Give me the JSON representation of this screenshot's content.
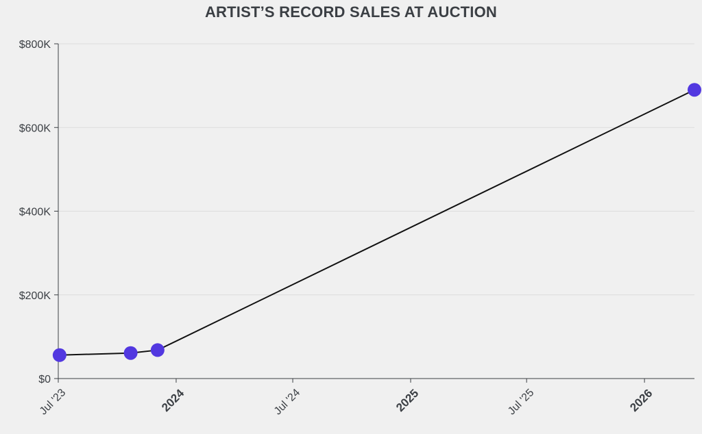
{
  "chart_data": {
    "type": "line",
    "title": "ARTIST’S RECORD SALES AT AUCTION",
    "xlabel": "",
    "ylabel": "",
    "x": [
      "2023-07-03",
      "2023-10-22",
      "2023-12-03",
      "2026-03-20"
    ],
    "series": [
      {
        "values": [
          56000,
          61000,
          68000,
          690000
        ]
      }
    ],
    "ylim": [
      0,
      800000
    ],
    "xlim": [
      "2023-07-01",
      "2026-03-20"
    ],
    "yticks": [
      {
        "value": 0,
        "label": "$0"
      },
      {
        "value": 200000,
        "label": "$200K"
      },
      {
        "value": 400000,
        "label": "$400K"
      },
      {
        "value": 600000,
        "label": "$600K"
      },
      {
        "value": 800000,
        "label": "$800K"
      }
    ],
    "xticks": [
      {
        "date": "2023-07-01",
        "label": "Jul '23",
        "major": false
      },
      {
        "date": "2024-01-01",
        "label": "2024",
        "major": true
      },
      {
        "date": "2024-07-01",
        "label": "Jul '24",
        "major": false
      },
      {
        "date": "2025-01-01",
        "label": "2025",
        "major": true
      },
      {
        "date": "2025-07-01",
        "label": "Jul '25",
        "major": false
      },
      {
        "date": "2026-01-01",
        "label": "2026",
        "major": true
      }
    ],
    "grid": true,
    "colors": {
      "line": "#111111",
      "marker": "#5238e0",
      "grid": "#dcdcdc",
      "axis": "#3b3f44",
      "background": "#f0f0f0"
    }
  }
}
